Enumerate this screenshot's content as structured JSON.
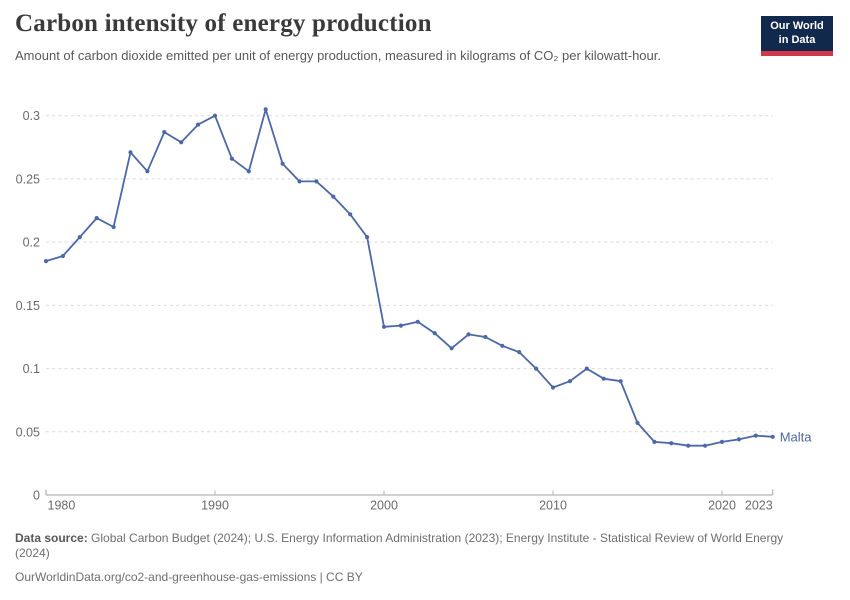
{
  "header": {
    "title": "Carbon intensity of energy production",
    "subtitle": "Amount of carbon dioxide emitted per unit of energy production, measured in kilograms of CO₂ per kilowatt-hour."
  },
  "logo": {
    "line1": "Our World",
    "line2": "in Data",
    "bg_color": "#12294e",
    "accent_color": "#d13846"
  },
  "chart_data": {
    "type": "line",
    "title": "Carbon intensity of energy production",
    "ylabel": "",
    "xlabel": "",
    "unit": "kilograms of CO₂ per kilowatt-hour",
    "grid": "horizontal-dashed",
    "legend": "end-of-line-label",
    "xlim": [
      1980,
      2023
    ],
    "ylim": [
      0,
      0.3
    ],
    "xticks": [
      1980,
      1990,
      2000,
      2010,
      2020,
      2023
    ],
    "yticks": [
      0,
      0.05,
      0.1,
      0.15,
      0.2,
      0.25,
      0.3
    ],
    "series": [
      {
        "name": "Malta",
        "color": "#4b69a8",
        "x": [
          1980,
          1981,
          1982,
          1983,
          1984,
          1985,
          1986,
          1987,
          1988,
          1989,
          1990,
          1991,
          1992,
          1993,
          1994,
          1995,
          1996,
          1997,
          1998,
          1999,
          2000,
          2001,
          2002,
          2003,
          2004,
          2005,
          2006,
          2007,
          2008,
          2009,
          2010,
          2011,
          2012,
          2013,
          2014,
          2015,
          2016,
          2017,
          2018,
          2019,
          2020,
          2021,
          2022,
          2023
        ],
        "values": [
          0.185,
          0.189,
          0.204,
          0.219,
          0.212,
          0.271,
          0.256,
          0.287,
          0.279,
          0.293,
          0.3,
          0.266,
          0.256,
          0.305,
          0.262,
          0.248,
          0.248,
          0.236,
          0.222,
          0.204,
          0.133,
          0.134,
          0.137,
          0.128,
          0.116,
          0.127,
          0.125,
          0.118,
          0.113,
          0.1,
          0.085,
          0.09,
          0.1,
          0.092,
          0.09,
          0.057,
          0.042,
          0.041,
          0.039,
          0.039,
          0.042,
          0.044,
          0.047,
          0.046
        ]
      }
    ]
  },
  "footer": {
    "datasource_label": "Data source:",
    "datasource_text": " Global Carbon Budget (2024); U.S. Energy Information Administration (2023); Energy Institute - Statistical Review of World Energy (2024)",
    "link_text": "OurWorldinData.org/co2-and-greenhouse-gas-emissions | CC BY"
  },
  "style_colors": {
    "line_blue": "#4b69a8",
    "grid_gray": "#d9d9d9",
    "axis_gray": "#a3a3a3",
    "tick_label_gray": "#6b6b6b"
  }
}
